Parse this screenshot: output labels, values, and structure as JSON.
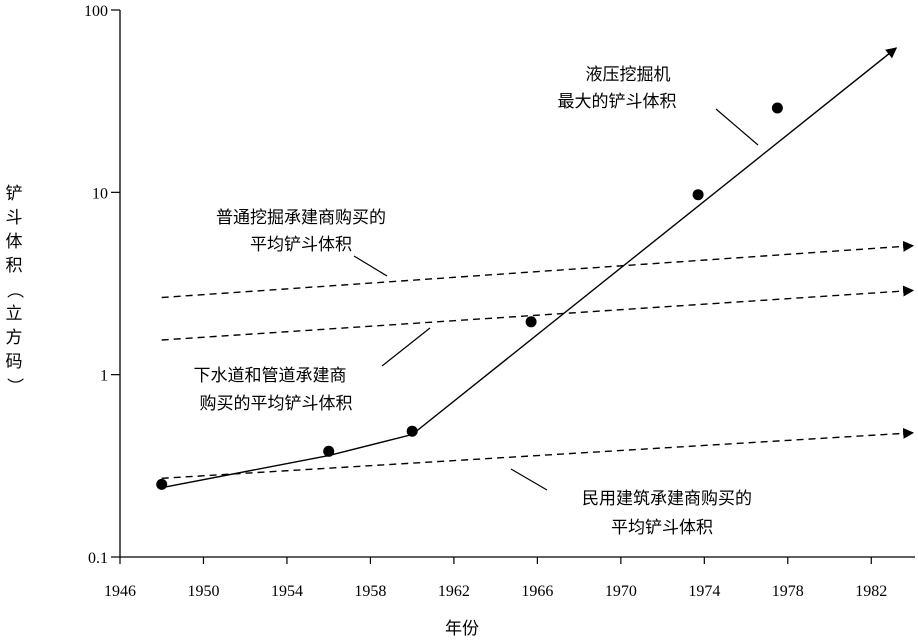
{
  "chart_data": {
    "type": "line",
    "xlabel": "年份",
    "ylabel": "铲斗体积（立方码）",
    "y_scale": "log",
    "xlim": [
      1946,
      1984
    ],
    "ylim": [
      0.1,
      100
    ],
    "x_ticks": [
      "1946",
      "1950",
      "1954",
      "1958",
      "1962",
      "1966",
      "1970",
      "1974",
      "1978",
      "1982"
    ],
    "y_ticks": [
      "0.1",
      "1",
      "10",
      "100"
    ],
    "series": [
      {
        "name": "液压挖掘机最大的铲斗体积",
        "style": "solid-arrow",
        "line": [
          [
            1948,
            0.24
          ],
          [
            1956,
            0.36
          ],
          [
            1960,
            0.47
          ],
          [
            1983.2,
            62
          ]
        ],
        "points": [
          [
            1948,
            0.25
          ],
          [
            1956,
            0.38
          ],
          [
            1960,
            0.49
          ],
          [
            1965.7,
            1.95
          ],
          [
            1973.7,
            9.7
          ],
          [
            1977.5,
            29
          ]
        ]
      },
      {
        "name": "普通挖掘承建商购买的平均铲斗体积",
        "style": "dashed-arrow",
        "line": [
          [
            1948,
            2.65
          ],
          [
            1984,
            5.1
          ]
        ]
      },
      {
        "name": "下水道和管道承建商购买的平均铲斗体积",
        "style": "dashed-arrow",
        "line": [
          [
            1948,
            1.55
          ],
          [
            1984,
            2.9
          ]
        ]
      },
      {
        "name": "民用建筑承建商购买的平均铲斗体积",
        "style": "dashed-arrow",
        "line": [
          [
            1948,
            0.27
          ],
          [
            1984,
            0.48
          ]
        ]
      }
    ],
    "annotations": [
      {
        "lines": [
          "液压挖掘机",
          "最大的铲斗体积"
        ]
      },
      {
        "lines": [
          "普通挖掘承建商购买的",
          "平均铲斗体积"
        ]
      },
      {
        "lines": [
          "下水道和管道承建商",
          "购买的平均铲斗体积"
        ]
      },
      {
        "lines": [
          "民用建筑承建商购买的",
          "平均铲斗体积"
        ]
      }
    ],
    "grid": false,
    "legend": "none"
  }
}
